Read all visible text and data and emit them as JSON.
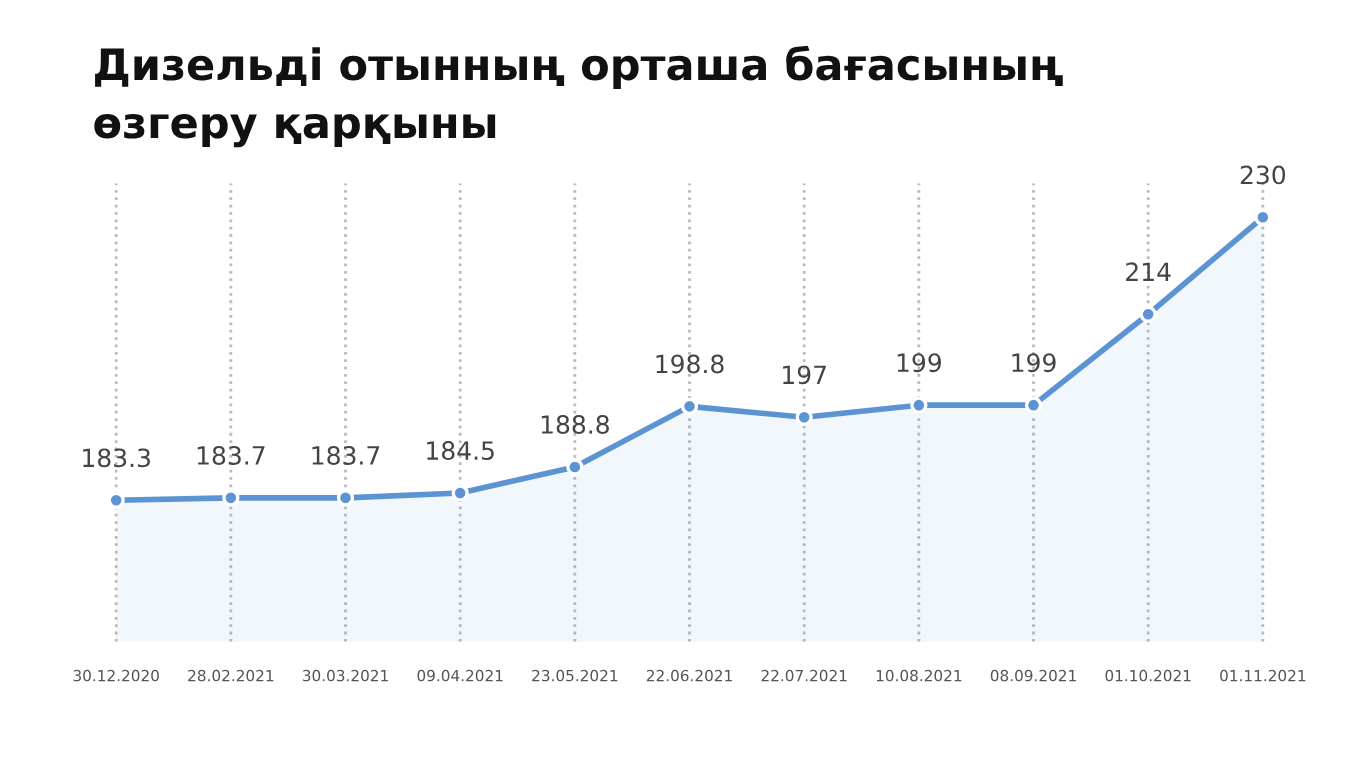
{
  "chart_data": {
    "type": "area",
    "title": "Дизельді отынның орташа бағасының\nөзгеру қарқыны",
    "categories": [
      "30.12.2020",
      "28.02.2021",
      "30.03.2021",
      "09.04.2021",
      "23.05.2021",
      "22.06.2021",
      "22.07.2021",
      "10.08.2021",
      "08.09.2021",
      "01.10.2021",
      "01.11.2021"
    ],
    "values": [
      183.3,
      183.7,
      183.7,
      184.5,
      188.8,
      198.8,
      197,
      199,
      199,
      214,
      230
    ],
    "value_labels": [
      "183.3",
      "183.7",
      "183.7",
      "184.5",
      "188.8",
      "198.8",
      "197",
      "199",
      "199",
      "214",
      "230"
    ],
    "color": "#5b93d3",
    "marker": "circle",
    "legend": false,
    "ref_lines": [
      {
        "axis": "x",
        "value": "30.12.2020",
        "color": "#bbbbbb",
        "line_style": "dotted"
      },
      {
        "axis": "x",
        "value": "28.02.2021",
        "color": "#bbbbbb",
        "line_style": "dotted"
      },
      {
        "axis": "x",
        "value": "30.03.2021",
        "color": "#bbbbbb",
        "line_style": "dotted"
      },
      {
        "axis": "x",
        "value": "09.04.2021",
        "color": "#bbbbbb",
        "line_style": "dotted"
      },
      {
        "axis": "x",
        "value": "23.05.2021",
        "color": "#bbbbbb",
        "line_style": "dotted"
      },
      {
        "axis": "x",
        "value": "22.06.2021",
        "color": "#bbbbbb",
        "line_style": "dotted"
      },
      {
        "axis": "x",
        "value": "22.07.2021",
        "color": "#bbbbbb",
        "line_style": "dotted"
      },
      {
        "axis": "x",
        "value": "10.08.2021",
        "color": "#bbbbbb",
        "line_style": "dotted"
      },
      {
        "axis": "x",
        "value": "08.09.2021",
        "color": "#bbbbbb",
        "line_style": "dotted"
      },
      {
        "axis": "x",
        "value": "01.10.2021",
        "color": "#bbbbbb",
        "line_style": "dotted"
      },
      {
        "axis": "x",
        "value": "01.11.2021",
        "color": "#bbbbbb",
        "line_style": "dotted"
      }
    ]
  }
}
